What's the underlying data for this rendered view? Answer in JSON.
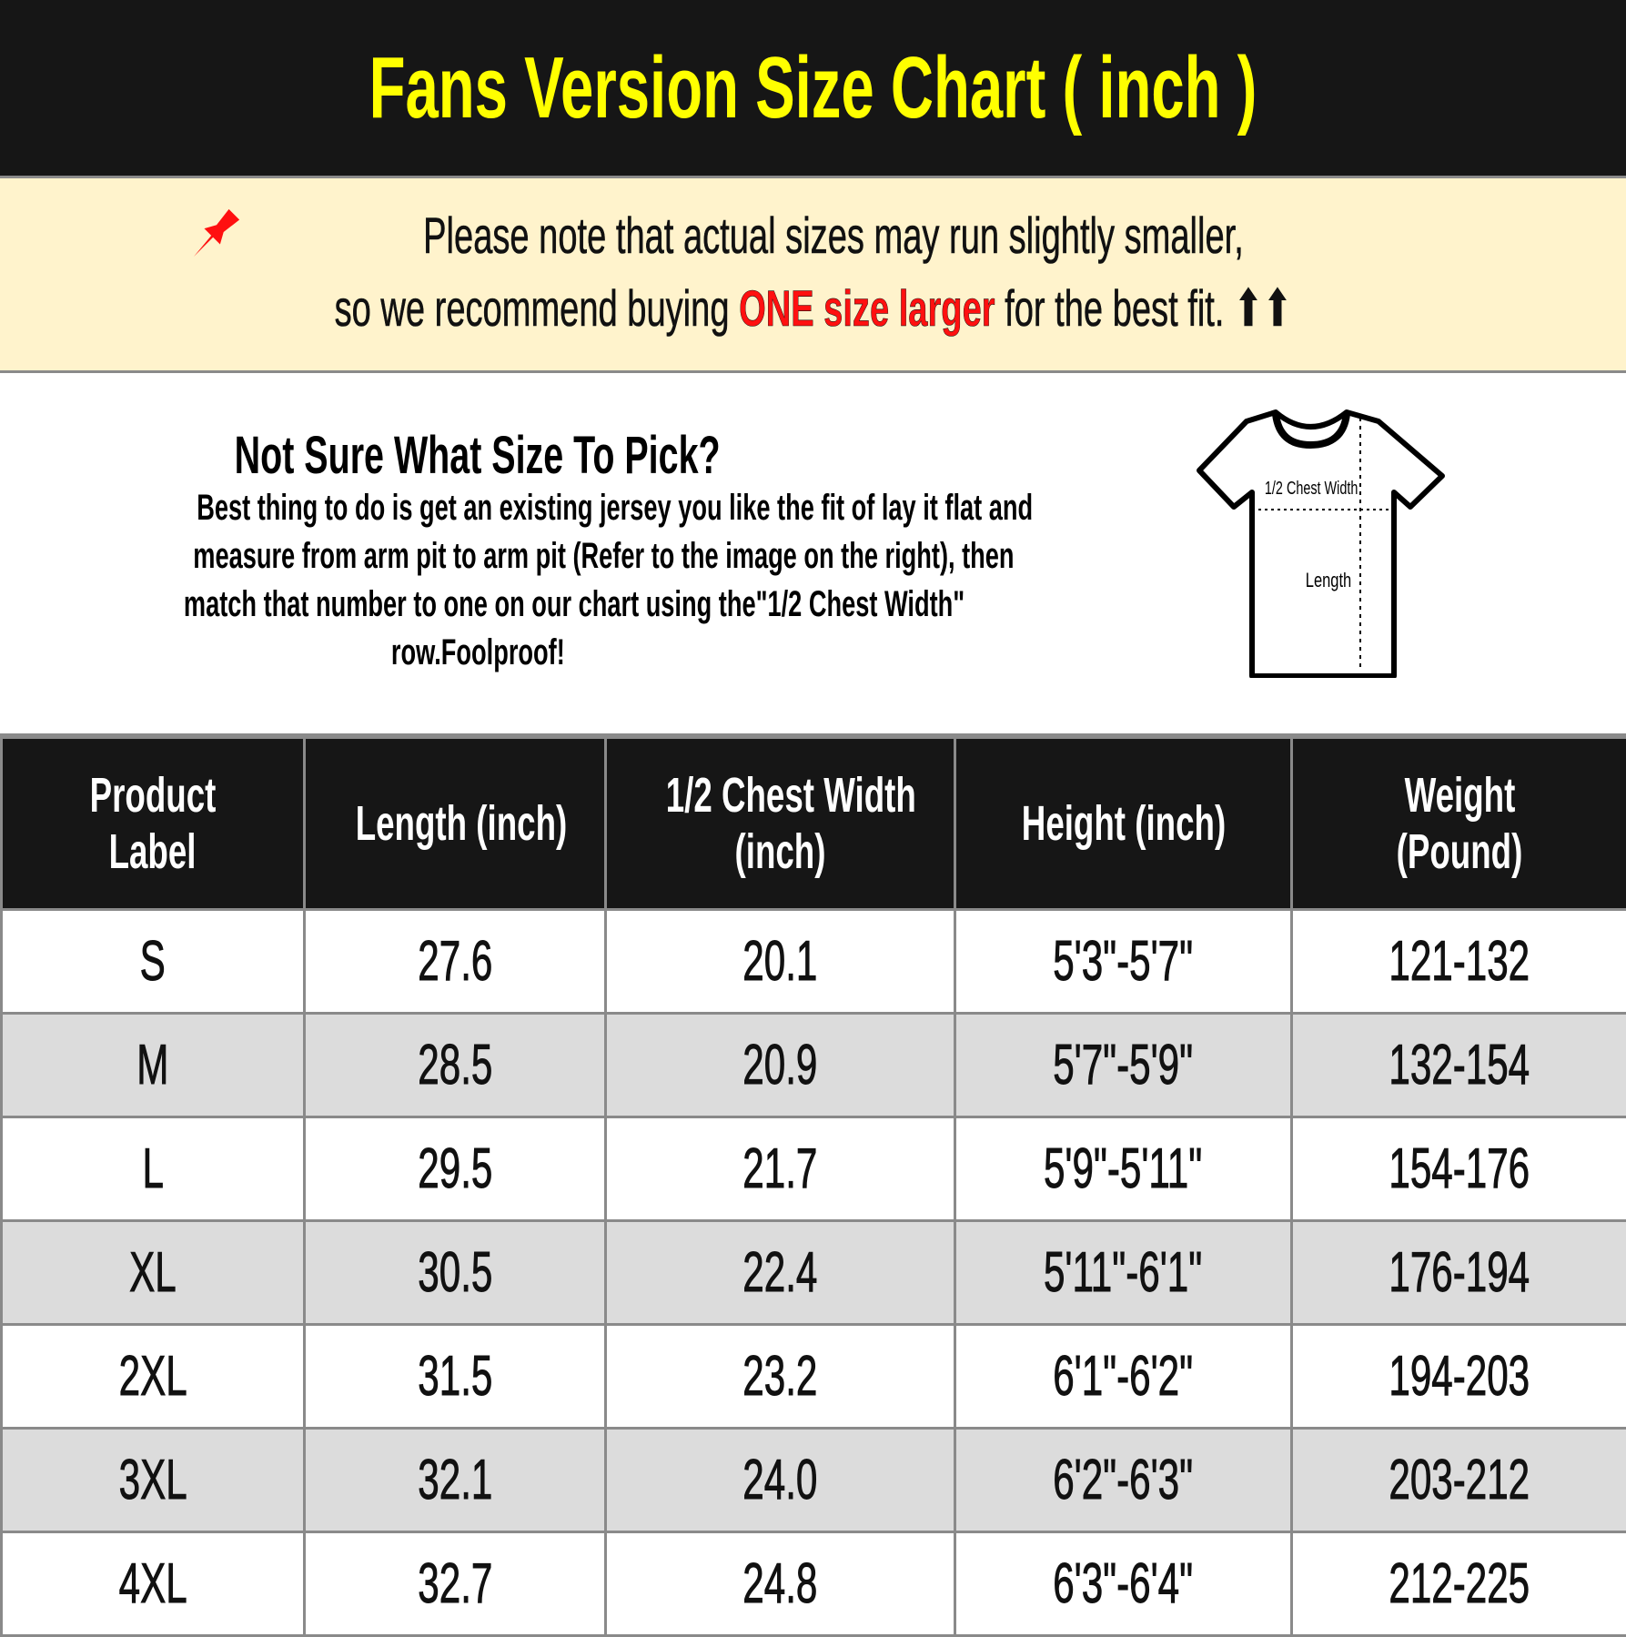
{
  "header": {
    "title": "Fans Version Size Chart ( inch )"
  },
  "note": {
    "icon": "pushpin-icon",
    "line1": "Please note that actual sizes may run slightly smaller,",
    "line2_before": "so we recommend buying ",
    "line2_highlight": "ONE size larger",
    "line2_after": " for the best fit. ",
    "arrows": "⬆⬆",
    "highlight_color": "#ff1010"
  },
  "info": {
    "heading": "Not Sure What Size To Pick?",
    "lines": [
      "Best thing to do is get an existing jersey you like the fit of lay it flat and",
      "measure from arm pit to arm pit (Refer to the image on the right), then",
      "match that number to one on our chart using the\"1/2 Chest Width\"",
      "row.Foolproof!"
    ],
    "diagram": {
      "chest_label": "1/2 Chest Width",
      "length_label": "Length"
    }
  },
  "table": {
    "headers": [
      [
        "Product",
        "Label"
      ],
      [
        "Length (inch)"
      ],
      [
        "1/2 Chest Width",
        "(inch)"
      ],
      [
        "Height (inch)"
      ],
      [
        "Weight",
        "(Pound)"
      ]
    ],
    "rows": [
      [
        "S",
        "27.6",
        "20.1",
        "5'3\"-5'7\"",
        "121-132"
      ],
      [
        "M",
        "28.5",
        "20.9",
        "5'7\"-5'9\"",
        "132-154"
      ],
      [
        "L",
        "29.5",
        "21.7",
        "5'9\"-5'11\"",
        "154-176"
      ],
      [
        "XL",
        "30.5",
        "22.4",
        "5'11\"-6'1\"",
        "176-194"
      ],
      [
        "2XL",
        "31.5",
        "23.2",
        "6'1\"-6'2\"",
        "194-203"
      ],
      [
        "3XL",
        "32.1",
        "24.0",
        "6'2\"-6'3\"",
        "203-212"
      ],
      [
        "4XL",
        "32.7",
        "24.8",
        "6'3\"-6'4\"",
        "212-225"
      ]
    ]
  },
  "colors": {
    "header_bg": "#161616",
    "title": "#ffff00",
    "note_bg": "#fff3cc",
    "alt_row": "#dcdcdc"
  }
}
